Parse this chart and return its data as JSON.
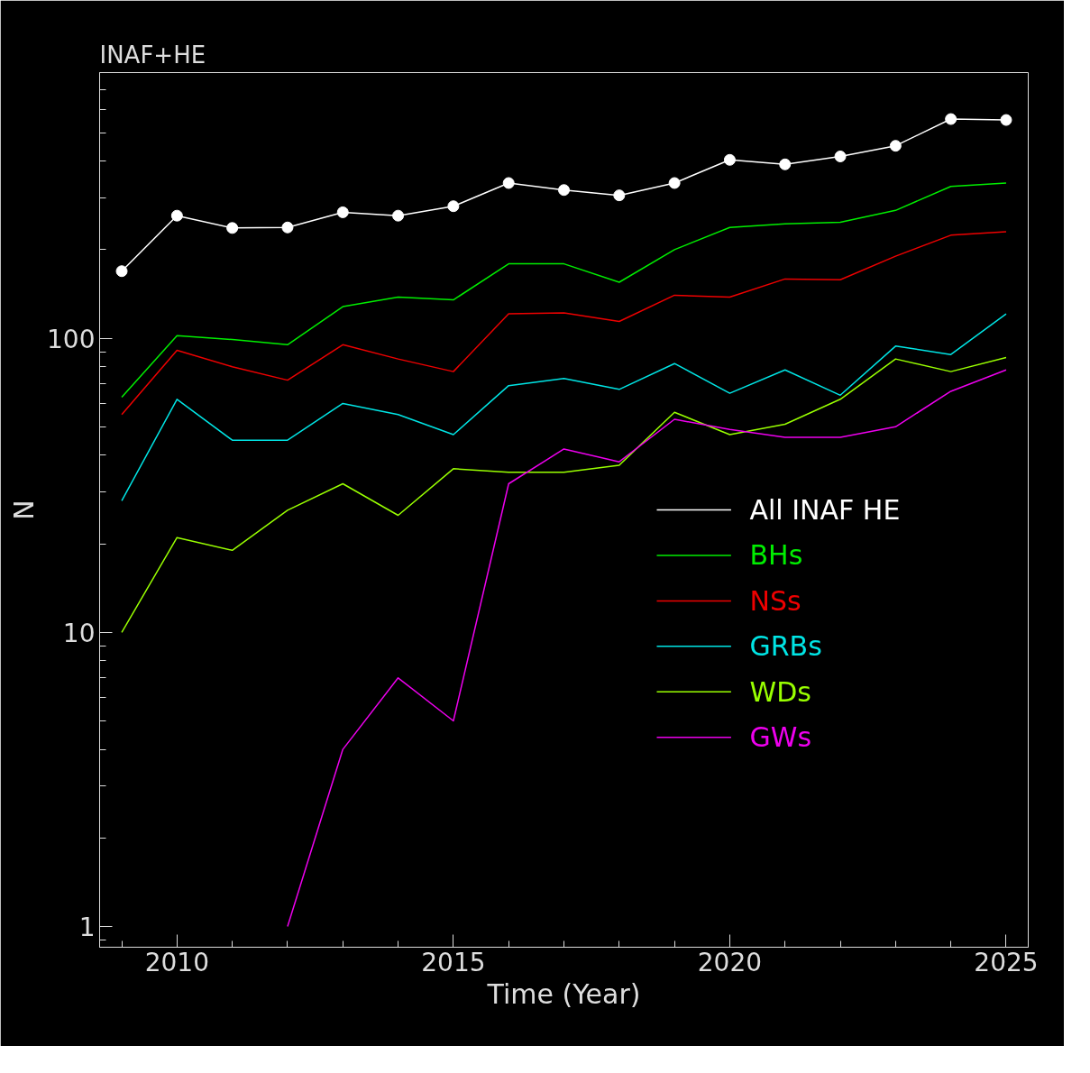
{
  "chart_data": {
    "type": "line",
    "title": "INAF+HE",
    "xlabel": "Time (Year)",
    "ylabel": "N",
    "log": true,
    "grid": false,
    "legend": "right",
    "x": [
      2009,
      2010,
      2011,
      2012,
      2013,
      2014,
      2015,
      2016,
      2017,
      2018,
      2019,
      2020,
      2021,
      2022,
      2023,
      2024,
      2025
    ],
    "xlim": [
      2008.6,
      2025.4
    ],
    "xticks": [
      2010,
      2015,
      2020,
      2025
    ],
    "ylim": [
      0.85,
      800
    ],
    "yticks": [
      1,
      10,
      100
    ],
    "series": [
      {
        "name": "All INAF HE",
        "color": "#ffffff",
        "marker": "circle",
        "values": [
          169,
          261,
          237,
          238,
          268,
          261,
          281,
          337,
          319,
          306,
          337,
          404,
          390,
          415,
          451,
          556,
          552
        ]
      },
      {
        "name": "BHs",
        "color": "#00ee00",
        "values": [
          63,
          102,
          99,
          95,
          128,
          138,
          135,
          179,
          179,
          155,
          200,
          238,
          245,
          248,
          272,
          328,
          337
        ]
      },
      {
        "name": "NSs",
        "color": "#ee0000",
        "values": [
          55,
          91,
          80,
          72,
          95,
          85,
          77,
          121,
          122,
          114,
          140,
          138,
          159,
          158,
          190,
          224,
          230
        ]
      },
      {
        "name": "GRBs",
        "color": "#00e5e5",
        "values": [
          28,
          62,
          45,
          45,
          60,
          55,
          47,
          69,
          73,
          67,
          82,
          65,
          78,
          64,
          94,
          88,
          121
        ]
      },
      {
        "name": "WDs",
        "color": "#99ff00",
        "values": [
          10,
          21,
          19,
          26,
          32,
          25,
          36,
          35,
          35,
          37,
          56,
          47,
          51,
          62,
          85,
          77,
          86
        ]
      },
      {
        "name": "GWs",
        "color": "#ee00ee",
        "values": [
          null,
          null,
          null,
          1,
          4,
          7,
          5,
          32,
          42,
          38,
          53,
          49,
          46,
          46,
          50,
          66,
          78
        ]
      }
    ]
  }
}
